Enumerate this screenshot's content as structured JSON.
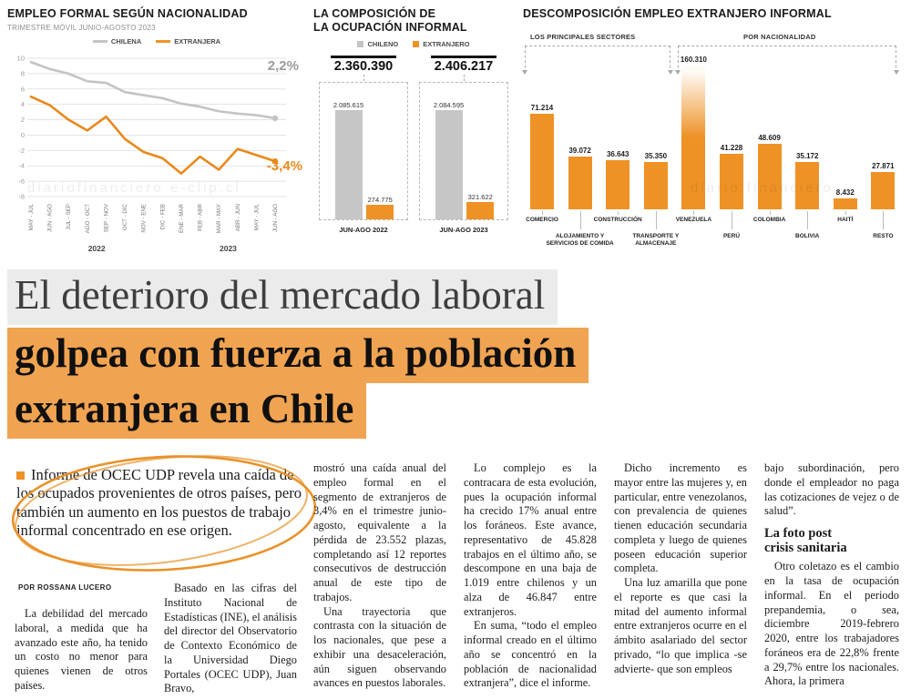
{
  "colors": {
    "orange": "#EE9226",
    "gray_series": "#C4C4C4",
    "headline_highlight": "#F0A351",
    "headline_gray_bg": "#EBEBEB",
    "hand_circle": "#E8922A"
  },
  "watermarks": {
    "left": "diariofinanciero      e-clip.cl",
    "right": "diario financiero"
  },
  "chart_data": [
    {
      "type": "line",
      "title": "EMPLEO FORMAL SEGÚN NACIONALIDAD",
      "subtitle": "TRIMESTRE MÓVIL JUNIO-AGOSTO 2023",
      "legend": [
        "CHILENA",
        "EXTRANJERA"
      ],
      "ylim": [
        -8,
        10
      ],
      "yticks": [
        10,
        8,
        6,
        4,
        2,
        0,
        -2,
        -4,
        -6,
        -8
      ],
      "x": [
        "MAY - JUL",
        "JUN - AGO",
        "JUL - SEP",
        "AGO - OCT",
        "SEP - NOV",
        "OCT - DIC",
        "NOV - ENE",
        "DIC - FEB",
        "ENE - MAR",
        "FEB - ABR",
        "MAR - MAY",
        "ABR - JUN",
        "MAY - JUL",
        "JUN - AGO"
      ],
      "year_labels": [
        "2022",
        "2023"
      ],
      "series": [
        {
          "name": "CHILENA",
          "color": "#C4C4C4",
          "end_label": "2,2%",
          "values": [
            9.5,
            8.6,
            8.0,
            7.0,
            6.8,
            5.6,
            5.2,
            4.8,
            4.1,
            3.7,
            3.1,
            2.8,
            2.6,
            2.2
          ]
        },
        {
          "name": "EXTRANJERA",
          "color": "#E8891B",
          "end_label": "-3,4%",
          "values": [
            5.0,
            3.9,
            2.0,
            0.6,
            2.4,
            -0.5,
            -2.2,
            -3.0,
            -5.0,
            -2.8,
            -4.5,
            -1.8,
            -2.6,
            -3.4
          ]
        }
      ]
    },
    {
      "type": "bar",
      "title": "LA COMPOSICIÓN DE\nLA OCUPACIÓN INFORMAL",
      "legend": [
        "CHILENO",
        "EXTRANJERO"
      ],
      "groups": [
        {
          "label": "JUN-AGO 2022",
          "total": "2.360.390",
          "chileno": 2085615,
          "chileno_label": "2.085.615",
          "extranjero": 274775,
          "extranjero_label": "274.775"
        },
        {
          "label": "JUN-AGO 2023",
          "total": "2.406.217",
          "chileno": 2084595,
          "chileno_label": "2.084.595",
          "extranjero": 321622,
          "extranjero_label": "321.622"
        }
      ]
    },
    {
      "type": "bar",
      "title": "DESCOMPOSICIÓN EMPLEO EXTRANJERO INFORMAL",
      "group_labels": [
        "LOS PRINCIPALES SECTORES",
        "POR NACIONALIDAD"
      ],
      "bars": [
        {
          "label": "COMERCIO",
          "value": 71214,
          "value_label": "71.214",
          "row": 1
        },
        {
          "label": "ALOJAMIENTO Y SERVICIOS DE COMIDA",
          "value": 39072,
          "value_label": "39.072",
          "row": 2
        },
        {
          "label": "CONSTRUCCIÓN",
          "value": 36643,
          "value_label": "36.643",
          "row": 1
        },
        {
          "label": "TRANSPORTE Y ALMACENAJE",
          "value": 35350,
          "value_label": "35.350",
          "row": 2
        },
        {
          "label": "VENEZUELA",
          "value": 160310,
          "value_label": "160.310",
          "row": 1,
          "clipped": true
        },
        {
          "label": "PERÚ",
          "value": 41228,
          "value_label": "41.228",
          "row": 2
        },
        {
          "label": "COLOMBIA",
          "value": 48609,
          "value_label": "48.609",
          "row": 1
        },
        {
          "label": "BOLIVIA",
          "value": 35172,
          "value_label": "35.172",
          "row": 2
        },
        {
          "label": "HAITÍ",
          "value": 8432,
          "value_label": "8.432",
          "row": 1
        },
        {
          "label": "RESTO",
          "value": 27871,
          "value_label": "27.871",
          "row": 2
        }
      ]
    }
  ],
  "headline": {
    "line1": "El deterioro del mercado laboral",
    "line2": "golpea con fuerza a la población",
    "line3": "extranjera en Chile"
  },
  "lead": "Informe de OCEC UDP revela una caída de los ocupados provenientes de otros países, pero también un aumento en los puestos de trabajo informal concentrado en ese origen.",
  "byline": "POR ROSSANA LUCERO",
  "columns": [
    {
      "blocks": [
        {
          "text": "La debilidad del mercado laboral, a medida que ha avanzado este año, ha tenido un costo no menor para quienes vienen de otros países.",
          "indent": true
        }
      ]
    },
    {
      "blocks": [
        {
          "text": "Basado en las cifras del Instituto Nacional de Estadísticas (INE), el análisis del director del Observatorio de Contexto Económico de la Universidad Diego Portales (OCEC UDP), Juan Bravo,",
          "indent": true
        }
      ]
    },
    {
      "blocks": [
        {
          "text": "mostró una caída anual del empleo formal en el segmento de extranjeros de 3,4% en el trimestre junio-agosto, equivalente a la pérdida de 23.552 plazas, completando así 12 reportes consecutivos de destrucción anual de este tipo de trabajos.",
          "indent": false
        },
        {
          "text": "Una trayectoria que contrasta con la situación de los nacionales, que pese a exhibir una desaceleración, aún siguen observando avances en puestos laborales.",
          "indent": true
        }
      ]
    },
    {
      "blocks": [
        {
          "text": "Lo complejo es la contracara de esta evolución, pues la ocupación informal ha crecido 17% anual entre los foráneos. Este avance, representativo de 45.828 trabajos en el último año, se descompone en una baja de 1.019 entre chilenos y un alza de 46.847 entre extranjeros.",
          "indent": true
        },
        {
          "text": "En suma, “todo el empleo informal creado en el último año se concentró en la población de nacionalidad extranjera”, dice el informe.",
          "indent": true
        }
      ]
    },
    {
      "blocks": [
        {
          "text": "Dicho incremento es mayor entre las mujeres y, en particular, entre venezolanos, con prevalencia de quienes tienen educación secundaria completa y luego de quienes poseen educación superior completa.",
          "indent": true
        },
        {
          "text": "Una luz amarilla que pone el reporte es que casi la mitad del aumento informal entre extranjeros ocurre en el ámbito asalariado del sector privado, “lo que implica -se advierte- que son empleos",
          "indent": true
        }
      ]
    },
    {
      "blocks": [
        {
          "text": "bajo subordinación, pero donde el empleador no paga las cotizaciones de vejez o de salud”.",
          "indent": false
        },
        {
          "subhead": "La foto post\ncrisis sanitaria"
        },
        {
          "text": "Otro coletazo es el cambio en la tasa de ocupación informal. En el periodo prepandemia, o sea, diciembre 2019-febrero 2020, entre los trabajadores foráneos era de 22,8% frente a 29,7% entre los nacionales. Ahora, la primera",
          "indent": true
        }
      ]
    }
  ]
}
